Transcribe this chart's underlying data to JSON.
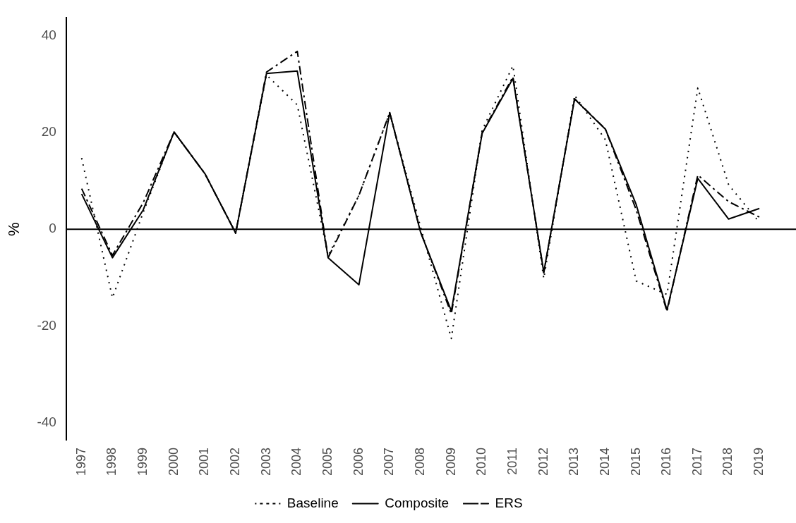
{
  "chart_data": {
    "type": "line",
    "ylabel": "%",
    "categories": [
      "1997",
      "1998",
      "1999",
      "2000",
      "2001",
      "2002",
      "2003",
      "2004",
      "2005",
      "2006",
      "2007",
      "2008",
      "2009",
      "2010",
      "2011",
      "2012",
      "2013",
      "2014",
      "2015",
      "2016",
      "2017",
      "2018",
      "2019"
    ],
    "series": [
      {
        "name": "Baseline",
        "color": "#000000",
        "line_style": "dotted",
        "values": [
          14.7,
          -14.2,
          3.5,
          20.1,
          11.5,
          -0.8,
          31.9,
          25.7,
          -5.5,
          7,
          24.1,
          0.5,
          -22.6,
          20.5,
          33.8,
          -10.2,
          27.7,
          18.5,
          -10.7,
          -13.5,
          29.2,
          9.2,
          1.4
        ]
      },
      {
        "name": "Composite",
        "color": "#000000",
        "line_style": "solid",
        "values": [
          7.3,
          -5.9,
          4,
          20.1,
          11.5,
          -0.8,
          32.2,
          32.7,
          -5.9,
          -11.5,
          24.1,
          -0.6,
          -16.9,
          19.8,
          31.2,
          -8.9,
          26.9,
          20.7,
          5.1,
          -16.7,
          10.5,
          2.1,
          4.3
        ]
      },
      {
        "name": "ERS",
        "color": "#000000",
        "line_style": "dashed",
        "values": [
          8.4,
          -5.4,
          5.5,
          20.1,
          11.5,
          -0.8,
          32.5,
          36.8,
          -5.9,
          7,
          24.1,
          -0.5,
          -17.5,
          20,
          31.5,
          -9,
          27,
          20.7,
          4,
          -17,
          11.2,
          5.7,
          2.5
        ]
      }
    ],
    "ylim": [
      -43.7,
      43.7
    ],
    "yticks": [
      -40,
      -20,
      0,
      20,
      40
    ],
    "ref_lines": [
      {
        "axis": "y",
        "value": 0
      }
    ],
    "grid": false,
    "legend": "bottom",
    "marker": "none"
  }
}
